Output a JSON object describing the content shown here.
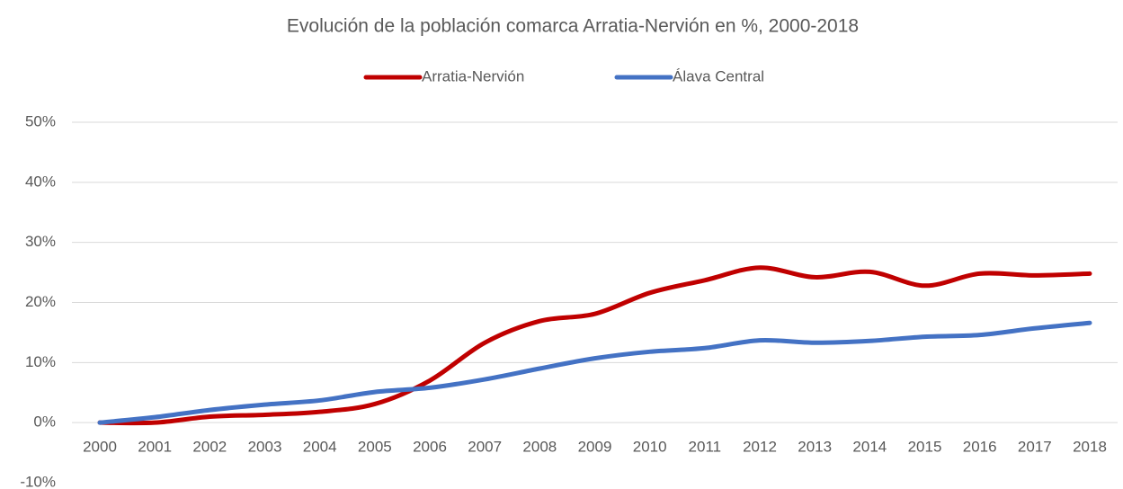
{
  "chart_data": {
    "type": "line",
    "title": "Evolución de la población comarca Arratia-Nervión en %, 2000-2018",
    "categories": [
      "2000",
      "2001",
      "2002",
      "2003",
      "2004",
      "2005",
      "2006",
      "2007",
      "2008",
      "2009",
      "2010",
      "2011",
      "2012",
      "2013",
      "2014",
      "2015",
      "2016",
      "2017",
      "2018"
    ],
    "series": [
      {
        "name": "Arratia-Nervión",
        "color": "#c00000",
        "values": [
          0,
          0,
          1.0,
          1.3,
          1.8,
          3.1,
          7.0,
          13.3,
          16.9,
          18.1,
          21.6,
          23.7,
          25.8,
          24.2,
          25.1,
          22.8,
          24.8,
          24.5,
          24.8
        ]
      },
      {
        "name": "Álava Central",
        "color": "#4472c4",
        "values": [
          0,
          0.9,
          2.1,
          3.0,
          3.7,
          5.1,
          5.8,
          7.2,
          9.0,
          10.7,
          11.8,
          12.4,
          13.7,
          13.3,
          13.6,
          14.3,
          14.6,
          15.7,
          16.6
        ]
      }
    ],
    "ylim": [
      -10,
      50
    ],
    "yticks": [
      {
        "value": -10,
        "label": "-10%"
      },
      {
        "value": 0,
        "label": "0%"
      },
      {
        "value": 10,
        "label": "10%"
      },
      {
        "value": 20,
        "label": "20%"
      },
      {
        "value": 30,
        "label": "30%"
      },
      {
        "value": 40,
        "label": "40%"
      },
      {
        "value": 50,
        "label": "50%"
      }
    ],
    "grid": true,
    "smooth": true,
    "legend": "top"
  }
}
